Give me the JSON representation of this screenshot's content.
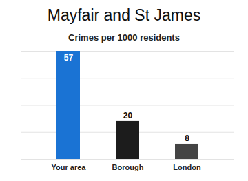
{
  "chart_data": {
    "type": "bar",
    "title": "Mayfair and St James",
    "subtitle": "Crimes per 1000 residents",
    "categories": [
      "Your area",
      "Borough",
      "London"
    ],
    "values": [
      57,
      20,
      8
    ],
    "colors": [
      "#1a73d4",
      "#1c1c1c",
      "#444444"
    ],
    "ylim": [
      0,
      57
    ],
    "yticks": [
      0,
      14.25,
      28.5,
      42.75,
      57
    ],
    "grid": true,
    "data_labels": true,
    "tick_labels": "x"
  }
}
